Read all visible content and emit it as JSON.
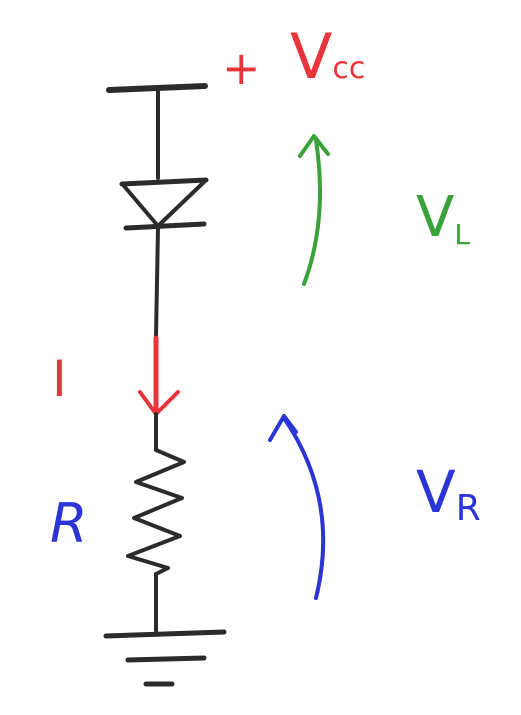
{
  "labels": {
    "plus": "+",
    "vcc_main": "V",
    "vcc_sub": "cc",
    "vl_main": "V",
    "vl_sub": "L",
    "current": "I",
    "resistor": "R",
    "vr_main": "V",
    "vr_sub": "R"
  },
  "colors": {
    "wire": "#2b2b2b",
    "supply": "#e8343a",
    "current": "#e8343a",
    "vl": "#3aa23a",
    "vr": "#2b34d4",
    "background": "#ffffff"
  },
  "icons": {
    "supply_bar": "terminal-bar",
    "diode": "diode-symbol",
    "resistor": "zigzag-resistor",
    "ground": "ground-symbol",
    "arrows": "curved-arrow"
  }
}
